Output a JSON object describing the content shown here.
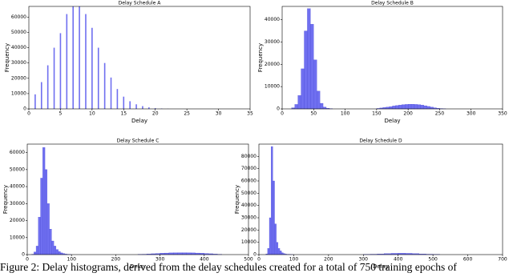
{
  "chart_data": [
    {
      "type": "bar",
      "title": "Delay Schedule A",
      "xlabel": "Delay",
      "ylabel": "Frequency",
      "color": "#6f6ff0",
      "x": [
        1,
        2,
        3,
        4,
        5,
        6,
        7,
        8,
        9,
        10,
        11,
        12,
        13,
        14,
        15,
        16,
        17,
        18,
        19,
        20,
        21,
        22
      ],
      "values": [
        9500,
        17500,
        28500,
        40000,
        49500,
        62000,
        67000,
        67000,
        62000,
        53000,
        40000,
        30000,
        20500,
        13000,
        8000,
        5000,
        3000,
        1800,
        1000,
        500,
        250,
        100
      ],
      "xlim": [
        0,
        35
      ],
      "xticks": [
        0,
        5,
        10,
        15,
        20,
        25,
        30,
        35
      ],
      "ylim": [
        0,
        67000
      ],
      "yticks": [
        0,
        10000,
        20000,
        30000,
        40000,
        50000,
        60000
      ]
    },
    {
      "type": "histogram",
      "title": "Delay Schedule B",
      "xlabel": "Delay",
      "ylabel": "Frequency",
      "color": "#6f6ff0",
      "bins": [
        15,
        20,
        25,
        30,
        35,
        40,
        45,
        50,
        55,
        60,
        65,
        70,
        75,
        80,
        150,
        155,
        160,
        165,
        170,
        175,
        180,
        185,
        190,
        195,
        200,
        205,
        210,
        215,
        220,
        225,
        230,
        235,
        240,
        245,
        250,
        255,
        260
      ],
      "values": [
        500,
        2000,
        6000,
        18000,
        35000,
        45000,
        38000,
        22000,
        8000,
        2500,
        800,
        300,
        100,
        0,
        200,
        400,
        600,
        800,
        1000,
        1300,
        1500,
        1700,
        1900,
        2000,
        2100,
        2100,
        2000,
        1900,
        1700,
        1400,
        1100,
        800,
        500,
        300,
        150,
        50
      ],
      "xlim": [
        0,
        350
      ],
      "xticks": [
        0,
        50,
        100,
        150,
        200,
        250,
        300,
        350
      ],
      "ylim": [
        0,
        46000
      ],
      "yticks": [
        0,
        10000,
        20000,
        30000,
        40000
      ]
    },
    {
      "type": "histogram",
      "title": "Delay Schedule C",
      "xlabel": "Delay",
      "ylabel": "Frequency",
      "color": "#6f6ff0",
      "bins": [
        10,
        15,
        20,
        25,
        30,
        35,
        40,
        45,
        50,
        55,
        60,
        65,
        70,
        75,
        80,
        85,
        90,
        95,
        100,
        250,
        260,
        270,
        280,
        290,
        300,
        310,
        320,
        330,
        340,
        350,
        360,
        370,
        380,
        390,
        400,
        410,
        420,
        430,
        440
      ],
      "values": [
        200,
        1500,
        5000,
        22000,
        45000,
        63000,
        50000,
        30000,
        15000,
        8000,
        5000,
        3000,
        1800,
        1000,
        600,
        300,
        150,
        50,
        0,
        100,
        200,
        350,
        500,
        650,
        800,
        900,
        1000,
        1050,
        1100,
        1100,
        1050,
        1000,
        900,
        800,
        650,
        500,
        300,
        150
      ],
      "xlim": [
        0,
        500
      ],
      "xticks": [
        0,
        100,
        200,
        300,
        400,
        500
      ],
      "ylim": [
        0,
        65000
      ],
      "yticks": [
        0,
        10000,
        20000,
        30000,
        40000,
        50000,
        60000
      ]
    },
    {
      "type": "histogram",
      "title": "Delay Schedule D",
      "xlabel": "Delay",
      "ylabel": "Frequency",
      "color": "#6f6ff0",
      "bins": [
        20,
        25,
        30,
        35,
        40,
        45,
        50,
        55,
        60,
        65,
        70,
        75,
        80,
        85,
        90,
        95,
        100,
        300,
        320,
        340,
        360,
        380,
        400,
        420,
        440,
        460,
        480,
        500,
        520
      ],
      "values": [
        500,
        5000,
        30000,
        88000,
        60000,
        25000,
        10000,
        5000,
        3000,
        1500,
        800,
        400,
        200,
        100,
        50,
        20,
        0,
        100,
        300,
        500,
        800,
        1000,
        1100,
        1000,
        800,
        500,
        300,
        100
      ],
      "xlim": [
        0,
        700
      ],
      "xticks": [
        0,
        100,
        200,
        300,
        400,
        500,
        600,
        700
      ],
      "ylim": [
        0,
        90000
      ],
      "yticks": [
        0,
        10000,
        20000,
        30000,
        40000,
        50000,
        60000,
        70000,
        80000
      ]
    }
  ],
  "caption": "Figure 2: Delay histograms, derived from the delay schedules created for a total of 750 training epochs of"
}
